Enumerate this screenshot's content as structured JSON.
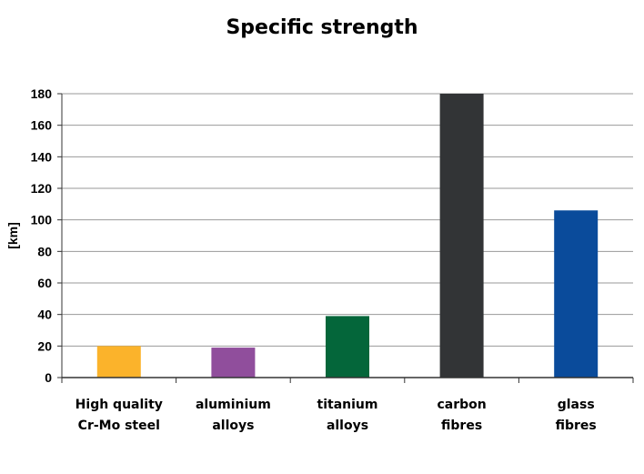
{
  "chart_data": {
    "type": "bar",
    "title": "Specific strength",
    "xlabel": "",
    "ylabel": "[km]",
    "ylim": [
      0,
      180
    ],
    "yticks": [
      0,
      20,
      40,
      60,
      80,
      100,
      120,
      140,
      160,
      180
    ],
    "grid": true,
    "categories": [
      [
        "High quality",
        "Cr-Mo steel"
      ],
      [
        "aluminium",
        "alloys"
      ],
      [
        "titanium",
        "alloys"
      ],
      [
        "carbon",
        "fibres"
      ],
      [
        "glass",
        "fibres"
      ]
    ],
    "values": [
      20,
      19,
      39,
      180,
      106
    ],
    "colors": [
      "#FBB32B",
      "#904E9C",
      "#04663A",
      "#323436",
      "#0A4B9B"
    ],
    "gridline_color": "#9a9a9a",
    "axis_color": "#333333"
  }
}
